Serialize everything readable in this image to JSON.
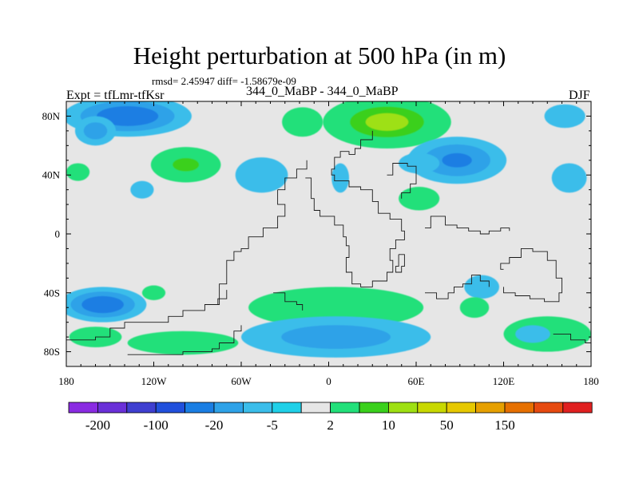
{
  "chart_data": {
    "type": "heatmap",
    "title": "Height perturbation at 500 hPa (in m)",
    "stats_text": "rmsd= 2.45947  diff= -1.58679e-09",
    "left_label": "Expt = tfLmr-tfKsr",
    "center_label": "344_0_MaBP - 344_0_MaBP",
    "right_label": "DJF",
    "x_range": [
      -180,
      180
    ],
    "y_range": [
      -90,
      90
    ],
    "x_ticks": [
      {
        "value": -180,
        "label": "180"
      },
      {
        "value": -120,
        "label": "120W"
      },
      {
        "value": -60,
        "label": "60W"
      },
      {
        "value": 0,
        "label": "0"
      },
      {
        "value": 60,
        "label": "60E"
      },
      {
        "value": 120,
        "label": "120E"
      },
      {
        "value": 180,
        "label": "180"
      }
    ],
    "y_ticks": [
      {
        "value": 80,
        "label": "80N"
      },
      {
        "value": 40,
        "label": "40N"
      },
      {
        "value": 0,
        "label": "0"
      },
      {
        "value": -40,
        "label": "40S"
      },
      {
        "value": -80,
        "label": "80S"
      }
    ],
    "colorbar": {
      "colors": [
        "#8a2be2",
        "#6a30d8",
        "#3f3fd0",
        "#2150dc",
        "#1a7ee3",
        "#2ea2e8",
        "#3bbdea",
        "#1fd0e8",
        "#e6e6e6",
        "#22e07a",
        "#3ad01c",
        "#9ee012",
        "#c8d800",
        "#e6c800",
        "#e6a000",
        "#e67000",
        "#e64a10",
        "#e02020"
      ],
      "labels": [
        {
          "after_box": 1,
          "text": "-200"
        },
        {
          "after_box": 3,
          "text": "-100"
        },
        {
          "after_box": 5,
          "text": "-20"
        },
        {
          "after_box": 7,
          "text": "-5"
        },
        {
          "after_box": 9,
          "text": "2"
        },
        {
          "after_box": 11,
          "text": "10"
        },
        {
          "after_box": 13,
          "text": "50"
        },
        {
          "after_box": 15,
          "text": "150"
        }
      ]
    },
    "anomalies": [
      {
        "lon": -138,
        "lat": 80,
        "rx": 44,
        "ry": 14,
        "value": -12
      },
      {
        "lon": -160,
        "lat": 70,
        "rx": 14,
        "ry": 10,
        "value": -8
      },
      {
        "lon": -98,
        "lat": 47,
        "rx": 24,
        "ry": 12,
        "value": 6
      },
      {
        "lon": -172,
        "lat": 42,
        "rx": 8,
        "ry": 6,
        "value": 4
      },
      {
        "lon": -128,
        "lat": 30,
        "rx": 8,
        "ry": 6,
        "value": -4
      },
      {
        "lon": -46,
        "lat": 40,
        "rx": 18,
        "ry": 12,
        "value": -5
      },
      {
        "lon": -18,
        "lat": 76,
        "rx": 14,
        "ry": 10,
        "value": 3
      },
      {
        "lon": 40,
        "lat": 76,
        "rx": 44,
        "ry": 18,
        "value": 8
      },
      {
        "lon": 8,
        "lat": 38,
        "rx": 6,
        "ry": 10,
        "value": -4
      },
      {
        "lon": 88,
        "lat": 50,
        "rx": 34,
        "ry": 16,
        "value": -10
      },
      {
        "lon": 62,
        "lat": 48,
        "rx": 14,
        "ry": 7,
        "value": -4
      },
      {
        "lon": 162,
        "lat": 80,
        "rx": 14,
        "ry": 8,
        "value": -4
      },
      {
        "lon": 165,
        "lat": 38,
        "rx": 12,
        "ry": 10,
        "value": -4
      },
      {
        "lon": 62,
        "lat": 24,
        "rx": 14,
        "ry": 8,
        "value": 4
      },
      {
        "lon": -155,
        "lat": -48,
        "rx": 30,
        "ry": 12,
        "value": -12
      },
      {
        "lon": -120,
        "lat": -40,
        "rx": 8,
        "ry": 5,
        "value": 3
      },
      {
        "lon": 5,
        "lat": -50,
        "rx": 60,
        "ry": 14,
        "value": 4
      },
      {
        "lon": 5,
        "lat": -70,
        "rx": 65,
        "ry": 14,
        "value": -8
      },
      {
        "lon": -160,
        "lat": -70,
        "rx": 18,
        "ry": 7,
        "value": 4
      },
      {
        "lon": -100,
        "lat": -74,
        "rx": 38,
        "ry": 8,
        "value": 3
      },
      {
        "lon": 105,
        "lat": -36,
        "rx": 12,
        "ry": 8,
        "value": -4
      },
      {
        "lon": 100,
        "lat": -50,
        "rx": 10,
        "ry": 7,
        "value": 3
      },
      {
        "lon": 150,
        "lat": -68,
        "rx": 30,
        "ry": 12,
        "value": 4
      },
      {
        "lon": 140,
        "lat": -68,
        "rx": 12,
        "ry": 6,
        "value": -4
      }
    ],
    "coastlines": [
      [
        [
          -138,
          -82
        ],
        [
          -110,
          -82
        ],
        [
          -100,
          -80
        ],
        [
          -80,
          -78
        ],
        [
          -75,
          -74
        ],
        [
          -65,
          -66
        ],
        [
          -60,
          -62
        ]
      ],
      [
        [
          -180,
          -72
        ],
        [
          -160,
          -70
        ],
        [
          -150,
          -64
        ],
        [
          -140,
          -60
        ],
        [
          -120,
          -60
        ],
        [
          -110,
          -56
        ],
        [
          -100,
          -52
        ],
        [
          -85,
          -48
        ],
        [
          -75,
          -34
        ],
        [
          -70,
          -18
        ],
        [
          -65,
          -12
        ],
        [
          -60,
          -10
        ],
        [
          -55,
          -2
        ],
        [
          -45,
          4
        ],
        [
          -35,
          12
        ],
        [
          -30,
          20
        ],
        [
          -35,
          30
        ]
      ],
      [
        [
          -35,
          30
        ],
        [
          -30,
          38
        ],
        [
          -22,
          44
        ],
        [
          -15,
          50
        ]
      ],
      [
        [
          -16,
          38
        ],
        [
          -12,
          24
        ],
        [
          -10,
          16
        ],
        [
          -6,
          12
        ],
        [
          4,
          6
        ],
        [
          10,
          -2
        ],
        [
          12,
          -8
        ],
        [
          14,
          -16
        ],
        [
          12,
          -26
        ],
        [
          16,
          -34
        ],
        [
          22,
          -36
        ],
        [
          30,
          -32
        ],
        [
          40,
          -26
        ],
        [
          44,
          -18
        ],
        [
          42,
          -10
        ],
        [
          46,
          -4
        ],
        [
          52,
          2
        ],
        [
          50,
          10
        ],
        [
          42,
          14
        ],
        [
          34,
          22
        ],
        [
          30,
          30
        ],
        [
          22,
          32
        ],
        [
          14,
          36
        ],
        [
          4,
          40
        ],
        [
          2,
          44
        ],
        [
          4,
          52
        ],
        [
          8,
          56
        ],
        [
          14,
          54
        ],
        [
          18,
          58
        ],
        [
          22,
          64
        ],
        [
          30,
          70
        ]
      ],
      [
        [
          40,
          40
        ],
        [
          44,
          48
        ],
        [
          54,
          46
        ],
        [
          60,
          34
        ],
        [
          56,
          28
        ],
        [
          50,
          24
        ]
      ],
      [
        [
          48,
          -14
        ],
        [
          52,
          -22
        ],
        [
          50,
          -26
        ],
        [
          46,
          -22
        ],
        [
          48,
          -14
        ]
      ],
      [
        [
          66,
          -40
        ],
        [
          74,
          -44
        ],
        [
          82,
          -40
        ],
        [
          86,
          -36
        ],
        [
          92,
          -34
        ],
        [
          98,
          -28
        ],
        [
          104,
          -32
        ],
        [
          110,
          -36
        ]
      ],
      [
        [
          120,
          -24
        ],
        [
          118,
          -20
        ],
        [
          124,
          -16
        ],
        [
          132,
          -10
        ],
        [
          140,
          -12
        ],
        [
          150,
          -18
        ],
        [
          156,
          -30
        ],
        [
          160,
          -40
        ],
        [
          158,
          -46
        ],
        [
          148,
          -44
        ],
        [
          138,
          -42
        ],
        [
          128,
          -40
        ],
        [
          120,
          -36
        ]
      ],
      [
        [
          154,
          -68
        ],
        [
          166,
          -72
        ],
        [
          176,
          -74
        ],
        [
          180,
          -76
        ]
      ],
      [
        [
          66,
          4
        ],
        [
          70,
          12
        ],
        [
          80,
          6
        ],
        [
          88,
          4
        ],
        [
          96,
          2
        ],
        [
          104,
          0
        ],
        [
          110,
          2
        ],
        [
          118,
          4
        ],
        [
          124,
          2
        ]
      ],
      [
        [
          -80,
          -48
        ],
        [
          -76,
          -44
        ],
        [
          -70,
          -38
        ]
      ],
      [
        [
          -38,
          -40
        ],
        [
          -30,
          -46
        ],
        [
          -22,
          -48
        ],
        [
          -18,
          -52
        ]
      ]
    ]
  }
}
